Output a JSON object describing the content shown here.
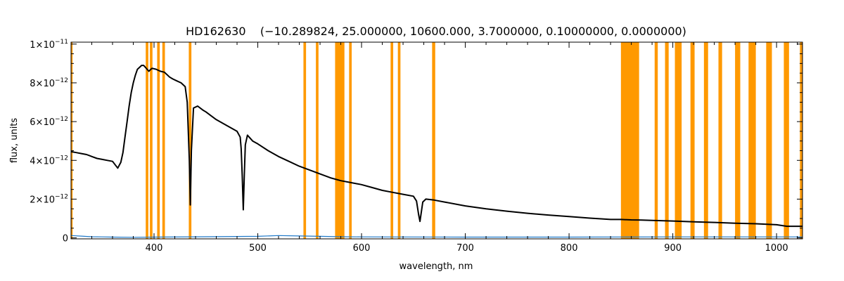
{
  "chart_data": {
    "type": "line",
    "title": "HD162630    (−10.289824, 25.000000, 10600.000, 3.7000000, 0.10000000, 0.0000000)",
    "xlabel": "wavelength, nm",
    "ylabel": "flux, units",
    "xlim": [
      320,
      1025
    ],
    "ylim": [
      -0.05,
      10.1
    ],
    "y_scale_exponent": -12,
    "x_ticks": [
      400,
      500,
      600,
      700,
      800,
      900,
      1000
    ],
    "x_tick_labels": [
      "400",
      "500",
      "600",
      "700",
      "800",
      "900",
      "1000"
    ],
    "y_ticks": [
      0,
      2,
      4,
      6,
      8,
      10
    ],
    "y_tick_labels": [
      {
        "mantissa": "0",
        "exp": ""
      },
      {
        "mantissa": "2×10",
        "exp": "−12"
      },
      {
        "mantissa": "4×10",
        "exp": "−12"
      },
      {
        "mantissa": "6×10",
        "exp": "−12"
      },
      {
        "mantissa": "8×10",
        "exp": "−12"
      },
      {
        "mantissa": "1×10",
        "exp": "−11"
      }
    ],
    "grid": false,
    "colors": {
      "spectrum": "#000000",
      "error": "#1e78c8",
      "mask": "#ff9900",
      "axes": "#000000"
    },
    "masked_regions": [
      [
        320,
        321.5
      ],
      [
        392,
        394.5
      ],
      [
        396,
        398.5
      ],
      [
        403,
        405.5
      ],
      [
        408,
        410.5
      ],
      [
        433.5,
        436
      ],
      [
        544,
        546.5
      ],
      [
        556,
        558.5
      ],
      [
        574.5,
        583.5
      ],
      [
        588,
        590.5
      ],
      [
        628,
        630.5
      ],
      [
        635,
        637.5
      ],
      [
        668,
        671
      ],
      [
        850,
        867.5
      ],
      [
        882.5,
        885.5
      ],
      [
        892.5,
        896
      ],
      [
        902,
        908.5
      ],
      [
        917,
        921
      ],
      [
        930,
        934
      ],
      [
        944,
        947.5
      ],
      [
        960,
        965
      ],
      [
        973,
        980
      ],
      [
        990,
        995.5
      ],
      [
        1007,
        1012
      ],
      [
        1022.5,
        1025
      ]
    ],
    "series": [
      {
        "name": "",
        "role": "flux",
        "x": [
          320,
          325,
          330,
          335,
          340,
          345,
          350,
          355,
          360,
          365,
          368,
          370,
          372,
          374,
          376,
          378,
          380,
          382,
          384,
          386,
          388,
          390,
          395,
          398,
          402,
          404,
          406,
          410,
          415,
          418,
          422,
          426,
          430,
          432,
          434,
          435,
          436,
          438,
          442,
          447,
          450,
          455,
          460,
          470,
          480,
          483,
          484,
          485,
          486,
          487,
          488,
          490,
          495,
          500,
          510,
          520,
          530,
          540,
          550,
          560,
          570,
          580,
          590,
          600,
          610,
          620,
          630,
          640,
          650,
          653,
          655,
          656.3,
          657.5,
          659,
          662,
          670,
          680,
          700,
          720,
          740,
          760,
          780,
          800,
          820,
          840,
          850,
          860,
          870,
          880,
          900,
          920,
          940,
          960,
          980,
          1000,
          1010,
          1025
        ],
        "y": [
          4.45,
          4.4,
          4.35,
          4.3,
          4.2,
          4.1,
          4.05,
          4.0,
          3.95,
          3.6,
          3.9,
          4.4,
          5.2,
          6.0,
          6.8,
          7.5,
          8.0,
          8.4,
          8.7,
          8.8,
          8.9,
          8.9,
          8.6,
          8.75,
          8.7,
          8.65,
          8.6,
          8.55,
          8.3,
          8.2,
          8.1,
          8.0,
          7.8,
          7.0,
          4.0,
          1.7,
          4.5,
          6.7,
          6.8,
          6.6,
          6.5,
          6.3,
          6.1,
          5.8,
          5.5,
          5.2,
          4.6,
          3.2,
          1.45,
          3.3,
          4.8,
          5.3,
          5.0,
          4.85,
          4.5,
          4.2,
          3.95,
          3.7,
          3.5,
          3.3,
          3.1,
          2.95,
          2.85,
          2.75,
          2.6,
          2.45,
          2.35,
          2.25,
          2.15,
          1.9,
          1.2,
          0.85,
          1.3,
          1.85,
          2.0,
          1.95,
          1.85,
          1.65,
          1.5,
          1.38,
          1.27,
          1.18,
          1.1,
          1.02,
          0.95,
          0.95,
          0.93,
          0.92,
          0.9,
          0.87,
          0.83,
          0.8,
          0.76,
          0.73,
          0.68,
          0.6,
          0.6
        ]
      },
      {
        "name": "",
        "role": "error",
        "x": [
          320,
          330,
          340,
          350,
          360,
          380,
          400,
          450,
          500,
          520,
          540,
          560,
          580,
          600,
          700,
          800,
          900,
          1000,
          1025
        ],
        "y": [
          0.12,
          0.09,
          0.06,
          0.05,
          0.04,
          0.03,
          0.04,
          0.06,
          0.08,
          0.12,
          0.1,
          0.08,
          0.06,
          0.05,
          0.04,
          0.04,
          0.05,
          0.05,
          0.05
        ]
      }
    ]
  }
}
